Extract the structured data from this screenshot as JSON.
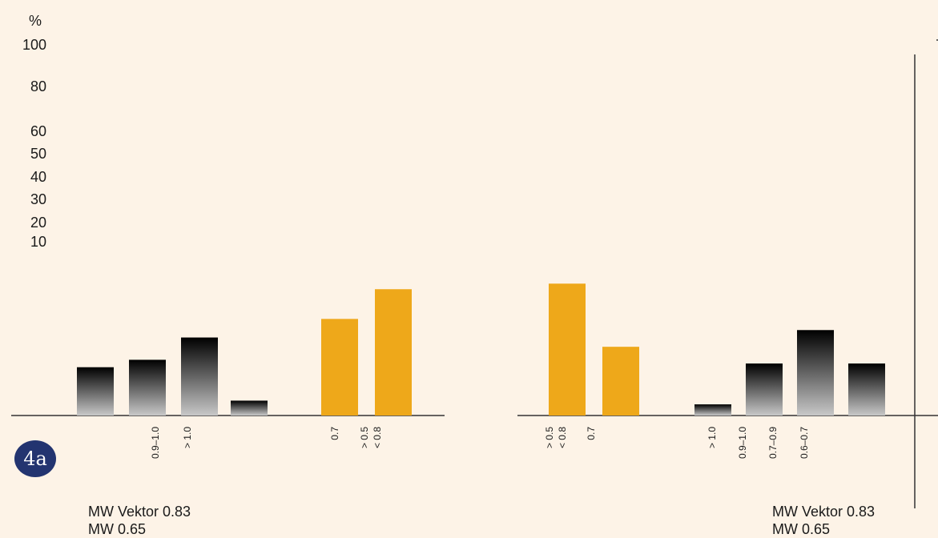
{
  "badge": "4a",
  "y_axis": {
    "unit": "%",
    "ticks": [
      "100",
      "80",
      "60",
      "50",
      "40",
      "30",
      "20",
      "10"
    ]
  },
  "colors": {
    "highlight": "#eea81a",
    "gradient_top": "#000000",
    "gradient_bottom": "#c8c8c8",
    "axis": "#333333"
  },
  "chart_data": [
    {
      "type": "bar",
      "panel": "left",
      "xlabel": "",
      "ylabel": "%",
      "bars": [
        {
          "value": 26,
          "style": "gradient",
          "label": ""
        },
        {
          "value": 30,
          "style": "gradient",
          "label": "0.9–1.0"
        },
        {
          "value": 42,
          "style": "gradient",
          "label": "> 1.0"
        },
        {
          "value": 8,
          "style": "gradient",
          "label": ""
        },
        {
          "value": 52,
          "style": "highlight",
          "label": "0.7"
        },
        {
          "value": 68,
          "style": "highlight",
          "label": "> 0.5 < 0.8"
        }
      ],
      "footer": [
        "MW Vektor 0.83",
        "MW  0.65"
      ]
    },
    {
      "type": "bar",
      "panel": "right",
      "xlabel": "",
      "ylabel": "%",
      "bars": [
        {
          "value": 71,
          "style": "highlight",
          "label": "> 0.5 < 0.8"
        },
        {
          "value": 37,
          "style": "highlight",
          "label": "0.7"
        },
        {
          "value": 6,
          "style": "gradient",
          "label": "> 1.0"
        },
        {
          "value": 28,
          "style": "gradient",
          "label": "0.9–1.0"
        },
        {
          "value": 46,
          "style": "gradient",
          "label": "0.7–0.9"
        },
        {
          "value": 28,
          "style": "gradient",
          "label": "0.6–0.7"
        }
      ],
      "footer": [
        "MW Vektor 0.83",
        "MW  0.65"
      ]
    }
  ]
}
